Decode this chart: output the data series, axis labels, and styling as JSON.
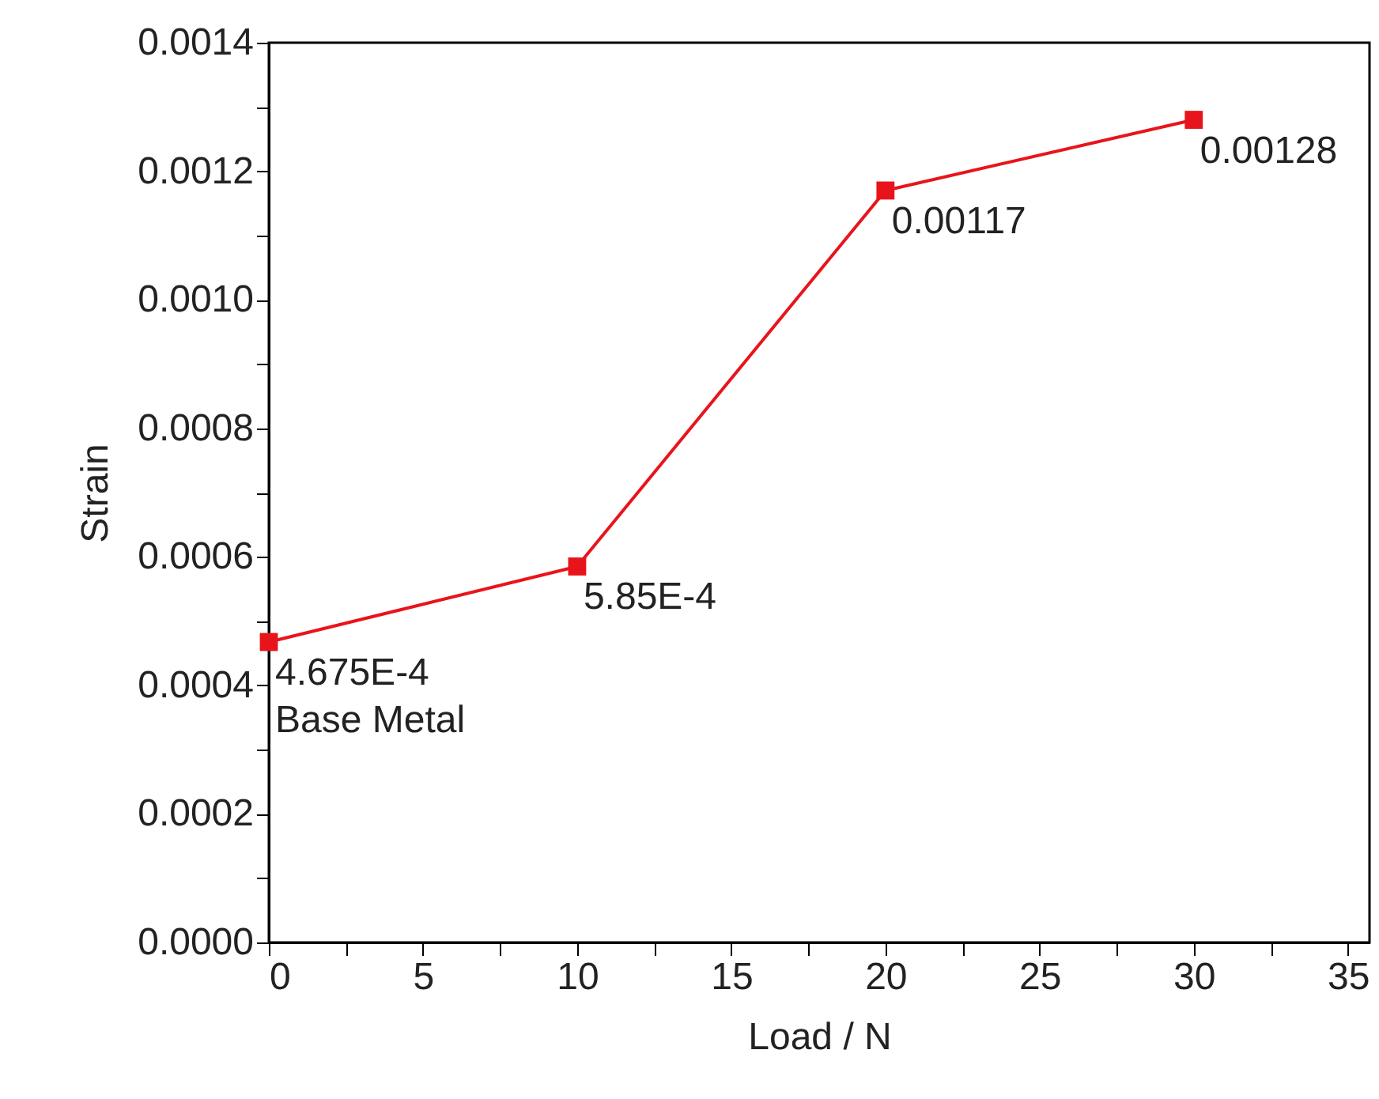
{
  "chart_data": {
    "type": "line",
    "xlabel": "Load / N",
    "ylabel": "Strain",
    "x": [
      0,
      10,
      20,
      30
    ],
    "series": [
      {
        "color": "#e8141c",
        "values": [
          0.0004675,
          0.000585,
          0.00117,
          0.00128
        ],
        "value_labels": [
          "4.675E-4",
          "5.85E-4",
          "0.00117",
          "0.00128"
        ]
      }
    ],
    "annotations": [
      "Base Metal"
    ],
    "marker": "square",
    "line_style": "solid",
    "grid": false,
    "xlim": [
      0,
      35.7
    ],
    "xticks": [
      0,
      {
        "value": 2.5,
        "label": null
      },
      5,
      {
        "value": 7.5,
        "label": null
      },
      10,
      {
        "value": 12.5,
        "label": null
      },
      15,
      {
        "value": 17.5,
        "label": null
      },
      20,
      {
        "value": 22.5,
        "label": null
      },
      25,
      {
        "value": 27.5,
        "label": null
      },
      30,
      {
        "value": 32.5,
        "label": null
      },
      35
    ],
    "ylim": [
      0,
      0.0014
    ],
    "yticks": [
      {
        "value": 0,
        "label": "0.0000"
      },
      {
        "value": 0.0001,
        "label": null
      },
      {
        "value": 0.0002,
        "label": "0.0002"
      },
      {
        "value": 0.0003,
        "label": null
      },
      {
        "value": 0.0004,
        "label": "0.0004"
      },
      {
        "value": 0.0005,
        "label": null
      },
      {
        "value": 0.0006,
        "label": "0.0006"
      },
      {
        "value": 0.0007,
        "label": null
      },
      {
        "value": 0.0008,
        "label": "0.0008"
      },
      {
        "value": 0.0009,
        "label": null
      },
      {
        "value": 0.001,
        "label": "0.0010"
      },
      {
        "value": 0.0011,
        "label": null
      },
      {
        "value": 0.0012,
        "label": "0.0012"
      },
      {
        "value": 0.0013,
        "label": null
      },
      {
        "value": 0.0014,
        "label": "0.0014"
      }
    ]
  }
}
